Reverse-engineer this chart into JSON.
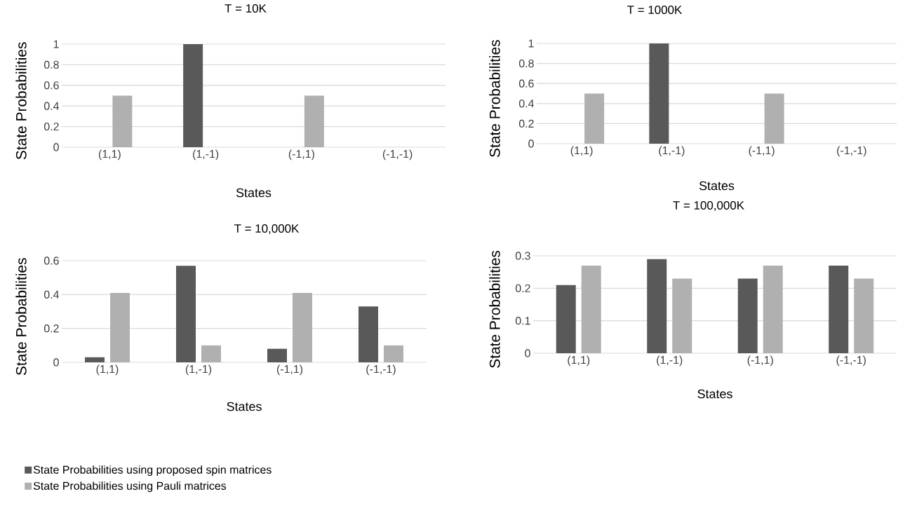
{
  "chart_data": [
    {
      "type": "bar",
      "title": "T = 10K",
      "xlabel": "States",
      "ylabel": "State Probabilities",
      "categories": [
        "(1,1)",
        "(1,-1)",
        "(-1,1)",
        "(-1,-1)"
      ],
      "series": [
        {
          "color": "#595959",
          "values": [
            0,
            1,
            0,
            0
          ]
        },
        {
          "color": "#b0b0b0",
          "values": [
            0.5,
            0,
            0.5,
            0
          ]
        }
      ],
      "ylim": [
        0,
        1
      ],
      "yticks": [
        0,
        0.2,
        0.4,
        0.6,
        0.8,
        1
      ],
      "grid": "y"
    },
    {
      "type": "bar",
      "title": "T = 1000K",
      "xlabel": "States",
      "ylabel": "State Probabilities",
      "categories": [
        "(1,1)",
        "(1,-1)",
        "(-1,1)",
        "(-1,-1)"
      ],
      "series": [
        {
          "color": "#595959",
          "values": [
            0,
            1,
            0,
            0
          ]
        },
        {
          "color": "#b0b0b0",
          "values": [
            0.5,
            0,
            0.5,
            0
          ]
        }
      ],
      "ylim": [
        0,
        1
      ],
      "yticks": [
        0,
        0.2,
        0.4,
        0.6,
        0.8,
        1
      ],
      "grid": "y"
    },
    {
      "type": "bar",
      "title": "T = 10,000K",
      "xlabel": "States",
      "ylabel": "State Probabilities",
      "categories": [
        "(1,1)",
        "(1,-1)",
        "(-1,1)",
        "(-1,-1)"
      ],
      "series": [
        {
          "name": "State Probabilities using proposed spin matrices",
          "color": "#595959",
          "values": [
            0.03,
            0.57,
            0.08,
            0.33
          ]
        },
        {
          "name": "State Probabilities using Pauli matrices",
          "color": "#b0b0b0",
          "values": [
            0.41,
            0.1,
            0.41,
            0.1
          ]
        }
      ],
      "ylim": [
        0,
        0.6
      ],
      "yticks": [
        0,
        0.2,
        0.4,
        0.6
      ],
      "grid": "y",
      "legend": "bottom left"
    },
    {
      "type": "bar",
      "title": "T = 100,000K",
      "xlabel": "States",
      "ylabel": "State Probabilities",
      "categories": [
        "(1,1)",
        "(1,-1)",
        "(-1,1)",
        "(-1,-1)"
      ],
      "series": [
        {
          "color": "#595959",
          "values": [
            0.21,
            0.29,
            0.23,
            0.27
          ]
        },
        {
          "color": "#b0b0b0",
          "values": [
            0.27,
            0.23,
            0.27,
            0.23
          ]
        }
      ],
      "ylim": [
        0,
        0.3
      ],
      "yticks": [
        0,
        0.1,
        0.2,
        0.3
      ],
      "grid": "y"
    }
  ]
}
